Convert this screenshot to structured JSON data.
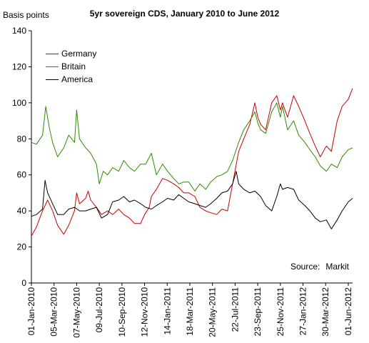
{
  "chart_data": {
    "type": "line",
    "title": "5yr sovereign CDS, January 2010 to June 2012",
    "ylabel": "Basis points",
    "ylim": [
      0,
      140
    ],
    "yticks": [
      0,
      20,
      40,
      60,
      80,
      100,
      120,
      140
    ],
    "xlim": [
      "2010-01-01",
      "2012-06-13"
    ],
    "xticks": [
      "01-Jan-2010",
      "05-Mar-2010",
      "07-May-2010",
      "09-Jul-2010",
      "10-Sep-2010",
      "12-Nov-2010",
      "14-Jan-2011",
      "18-Mar-2011",
      "20-May-2011",
      "22-Jul-2011",
      "23-Sep-2011",
      "25-Nov-2011",
      "27-Jan-2012",
      "30-Mar-2012",
      "01-Jun-2012"
    ],
    "legend_position": "top-left",
    "grid": false,
    "source": {
      "label": "Source:",
      "value": "Markit"
    },
    "series": [
      {
        "name": "Germany",
        "color": "#cc0000",
        "x": [
          "2010-01-01",
          "2010-01-15",
          "2010-02-01",
          "2010-02-15",
          "2010-03-01",
          "2010-03-15",
          "2010-04-01",
          "2010-04-15",
          "2010-05-01",
          "2010-05-07",
          "2010-05-15",
          "2010-06-01",
          "2010-06-08",
          "2010-06-15",
          "2010-07-01",
          "2010-07-15",
          "2010-08-01",
          "2010-08-15",
          "2010-09-01",
          "2010-09-15",
          "2010-10-01",
          "2010-10-15",
          "2010-11-01",
          "2010-11-12",
          "2010-11-25",
          "2010-12-01",
          "2010-12-15",
          "2011-01-01",
          "2011-01-15",
          "2011-02-01",
          "2011-02-15",
          "2011-03-01",
          "2011-03-15",
          "2011-04-01",
          "2011-04-15",
          "2011-05-01",
          "2011-05-15",
          "2011-06-01",
          "2011-06-15",
          "2011-07-01",
          "2011-07-15",
          "2011-08-01",
          "2011-08-15",
          "2011-09-01",
          "2011-09-15",
          "2011-09-23",
          "2011-10-01",
          "2011-10-15",
          "2011-11-01",
          "2011-11-15",
          "2011-11-25",
          "2011-12-01",
          "2011-12-15",
          "2012-01-01",
          "2012-01-15",
          "2012-02-01",
          "2012-02-15",
          "2012-03-01",
          "2012-03-15",
          "2012-04-01",
          "2012-04-15",
          "2012-05-01",
          "2012-05-15",
          "2012-06-01",
          "2012-06-13"
        ],
        "values": [
          26,
          31,
          40,
          46,
          40,
          32,
          27,
          32,
          40,
          50,
          44,
          47,
          51,
          46,
          42,
          38,
          40,
          38,
          41,
          38,
          36,
          33,
          33,
          38,
          42,
          48,
          52,
          58,
          57,
          55,
          53,
          50,
          50,
          48,
          42,
          40,
          39,
          38,
          41,
          40,
          55,
          73,
          80,
          88,
          100,
          92,
          88,
          85,
          100,
          104,
          96,
          100,
          92,
          104,
          98,
          90,
          83,
          76,
          70,
          76,
          73,
          90,
          98,
          102,
          108
        ]
      },
      {
        "name": "Britain",
        "color": "#2e8b00",
        "x": [
          "2010-01-01",
          "2010-01-15",
          "2010-02-01",
          "2010-02-10",
          "2010-02-20",
          "2010-03-01",
          "2010-03-15",
          "2010-04-01",
          "2010-04-15",
          "2010-05-01",
          "2010-05-07",
          "2010-05-15",
          "2010-06-01",
          "2010-06-15",
          "2010-07-01",
          "2010-07-09",
          "2010-07-20",
          "2010-08-01",
          "2010-08-15",
          "2010-09-01",
          "2010-09-15",
          "2010-10-01",
          "2010-10-15",
          "2010-11-01",
          "2010-11-15",
          "2010-12-01",
          "2010-12-15",
          "2011-01-01",
          "2011-01-15",
          "2011-02-01",
          "2011-02-15",
          "2011-03-01",
          "2011-03-15",
          "2011-04-01",
          "2011-04-15",
          "2011-05-01",
          "2011-05-15",
          "2011-06-01",
          "2011-06-15",
          "2011-07-01",
          "2011-07-15",
          "2011-08-01",
          "2011-08-15",
          "2011-09-01",
          "2011-09-15",
          "2011-09-23",
          "2011-10-01",
          "2011-10-15",
          "2011-11-01",
          "2011-11-15",
          "2011-11-25",
          "2011-12-01",
          "2011-12-15",
          "2012-01-01",
          "2012-01-15",
          "2012-02-01",
          "2012-02-15",
          "2012-03-01",
          "2012-03-15",
          "2012-04-01",
          "2012-04-15",
          "2012-05-01",
          "2012-05-15",
          "2012-06-01",
          "2012-06-13"
        ],
        "values": [
          78,
          77,
          82,
          98,
          86,
          78,
          70,
          75,
          82,
          78,
          96,
          80,
          75,
          72,
          66,
          55,
          62,
          60,
          64,
          62,
          68,
          64,
          62,
          66,
          66,
          72,
          60,
          66,
          62,
          58,
          55,
          56,
          56,
          51,
          55,
          52,
          56,
          59,
          60,
          62,
          68,
          78,
          85,
          90,
          95,
          89,
          85,
          83,
          95,
          100,
          92,
          98,
          85,
          90,
          82,
          78,
          74,
          70,
          65,
          62,
          66,
          64,
          70,
          74,
          75
        ]
      },
      {
        "name": "America",
        "color": "#000000",
        "x": [
          "2010-01-01",
          "2010-01-15",
          "2010-02-01",
          "2010-02-08",
          "2010-02-15",
          "2010-03-01",
          "2010-03-15",
          "2010-04-01",
          "2010-04-15",
          "2010-05-01",
          "2010-05-15",
          "2010-06-01",
          "2010-06-15",
          "2010-07-01",
          "2010-07-15",
          "2010-08-01",
          "2010-08-15",
          "2010-09-01",
          "2010-09-15",
          "2010-10-01",
          "2010-10-15",
          "2010-11-01",
          "2010-11-15",
          "2010-12-01",
          "2010-12-15",
          "2011-01-01",
          "2011-01-15",
          "2011-02-01",
          "2011-02-15",
          "2011-03-01",
          "2011-03-15",
          "2011-04-01",
          "2011-04-15",
          "2011-05-01",
          "2011-05-15",
          "2011-06-01",
          "2011-06-15",
          "2011-07-01",
          "2011-07-15",
          "2011-07-25",
          "2011-08-01",
          "2011-08-15",
          "2011-09-01",
          "2011-09-15",
          "2011-10-01",
          "2011-10-15",
          "2011-11-01",
          "2011-11-15",
          "2011-11-25",
          "2011-12-01",
          "2011-12-15",
          "2012-01-01",
          "2012-01-15",
          "2012-02-01",
          "2012-02-15",
          "2012-03-01",
          "2012-03-15",
          "2012-04-01",
          "2012-04-15",
          "2012-05-01",
          "2012-05-15",
          "2012-06-01",
          "2012-06-13"
        ],
        "values": [
          37,
          38,
          41,
          57,
          50,
          44,
          38,
          38,
          41,
          42,
          40,
          40,
          41,
          42,
          36,
          38,
          45,
          46,
          48,
          45,
          46,
          44,
          42,
          41,
          43,
          45,
          47,
          46,
          49,
          47,
          45,
          44,
          43,
          42,
          44,
          47,
          50,
          51,
          55,
          62,
          55,
          52,
          50,
          51,
          48,
          43,
          40,
          48,
          55,
          52,
          53,
          52,
          46,
          43,
          40,
          36,
          34,
          35,
          30,
          35,
          40,
          45,
          47
        ]
      }
    ]
  }
}
